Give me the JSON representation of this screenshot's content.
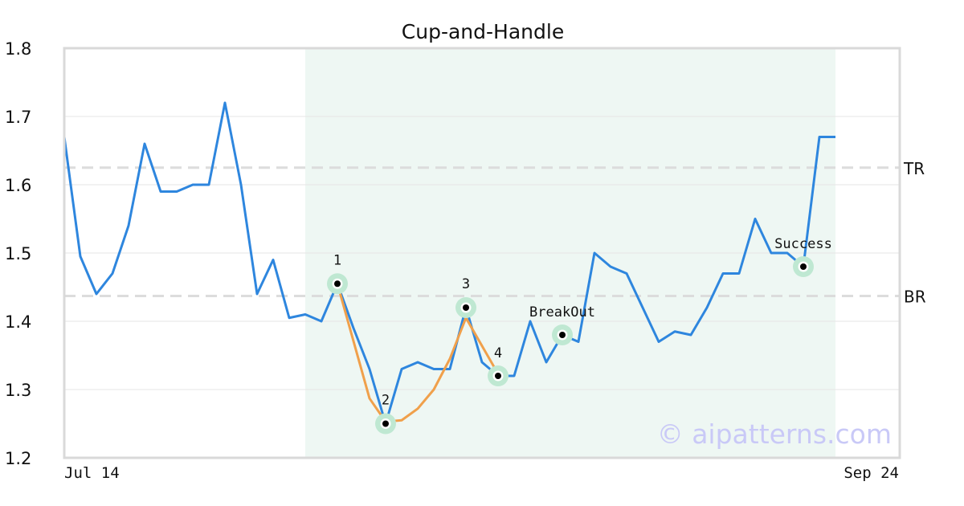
{
  "chart_data": {
    "type": "line",
    "title": "Cup-and-Handle",
    "xlabel": "",
    "ylabel": "",
    "ylim": [
      1.2,
      1.8
    ],
    "y_ticks": [
      "1.2",
      "1.3",
      "1.4",
      "1.5",
      "1.6",
      "1.7",
      "1.8"
    ],
    "x_tick_labels": [
      "Jul 14",
      "Sep 24"
    ],
    "grid": "horizontal",
    "series": [
      {
        "role": "price",
        "color": "#2e86de",
        "values": [
          1.67,
          1.495,
          1.44,
          1.47,
          1.54,
          1.66,
          1.59,
          1.59,
          1.6,
          1.6,
          1.72,
          1.6,
          1.44,
          1.49,
          1.405,
          1.41,
          1.4,
          1.455,
          1.39,
          1.33,
          1.25,
          1.33,
          1.34,
          1.33,
          1.33,
          1.42,
          1.34,
          1.32,
          1.32,
          1.4,
          1.34,
          1.38,
          1.37,
          1.5,
          1.48,
          1.47,
          1.42,
          1.37,
          1.385,
          1.38,
          1.42,
          1.47,
          1.47,
          1.55,
          1.5,
          1.5,
          1.48,
          1.67,
          1.67
        ]
      },
      {
        "role": "cup-fit",
        "color": "#f0a04b",
        "x_index": [
          17,
          19,
          20,
          21,
          22,
          23,
          24,
          25,
          27
        ],
        "values": [
          1.455,
          1.287,
          1.253,
          1.255,
          1.272,
          1.3,
          1.345,
          1.405,
          1.323
        ]
      }
    ],
    "highlight_region": {
      "from_index": 15,
      "to_index": 48,
      "color": "#eef7f3"
    },
    "reference_lines": [
      {
        "label": "TR",
        "value": 1.625
      },
      {
        "label": "BR",
        "value": 1.437
      }
    ],
    "annotations": [
      {
        "label": "1",
        "index": 17,
        "value": 1.455
      },
      {
        "label": "2",
        "index": 20,
        "value": 1.25
      },
      {
        "label": "3",
        "index": 25,
        "value": 1.42
      },
      {
        "label": "4",
        "index": 27,
        "value": 1.32
      },
      {
        "label": "BreakOut",
        "index": 31,
        "value": 1.38
      },
      {
        "label": "Success",
        "index": 46,
        "value": 1.48
      }
    ],
    "watermark": "© aipatterns.com"
  }
}
